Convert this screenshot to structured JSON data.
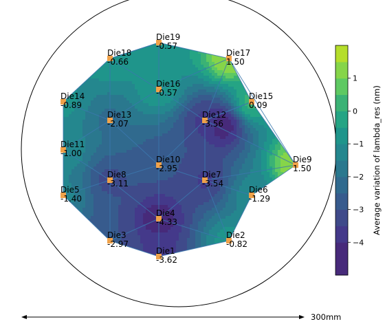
{
  "chart_data": {
    "type": "contour",
    "title": "",
    "colorbar": {
      "label": "Average variation of lambda_res (nm)",
      "ticks": [
        1,
        0,
        -1,
        -2,
        -3,
        -4
      ],
      "tick_labels": [
        "1",
        "0",
        "−1",
        "−2",
        "−3",
        "−4"
      ],
      "range": [
        -5,
        2
      ],
      "levels": [
        -5,
        -4,
        -3.5,
        -3,
        -2.5,
        -2,
        -1.5,
        -1,
        -0.5,
        0,
        0.5,
        1,
        1.5,
        2
      ],
      "colors": [
        "#472a7a",
        "#44398a",
        "#3f4a8a",
        "#375b8d",
        "#306a8e",
        "#2a788e",
        "#24878e",
        "#1f958b",
        "#25a484",
        "#3bb275",
        "#5ec962",
        "#86d549",
        "#b5de2b",
        "#dde318"
      ]
    },
    "scale_bar": {
      "label": "300mm"
    },
    "dies": [
      {
        "name": "Die1",
        "value": "-3.62",
        "v": -3.62
      },
      {
        "name": "Die2",
        "value": "-0.82",
        "v": -0.82
      },
      {
        "name": "Die3",
        "value": "-2.97",
        "v": -2.97
      },
      {
        "name": "Die4",
        "value": "-4.33",
        "v": -4.33
      },
      {
        "name": "Die5",
        "value": "-1.40",
        "v": -1.4
      },
      {
        "name": "Die6",
        "value": "-1.29",
        "v": -1.29
      },
      {
        "name": "Die7",
        "value": "-3.54",
        "v": -3.54
      },
      {
        "name": "Die8",
        "value": "-3.11",
        "v": -3.11
      },
      {
        "name": "Die9",
        "value": "1.50",
        "v": 1.5
      },
      {
        "name": "Die10",
        "value": "-2.95",
        "v": -2.95
      },
      {
        "name": "Die11",
        "value": "-1.00",
        "v": -1.0
      },
      {
        "name": "Die12",
        "value": "-3.56",
        "v": -3.56
      },
      {
        "name": "Die13",
        "value": "-2.07",
        "v": -2.07
      },
      {
        "name": "Die14",
        "value": "-0.89",
        "v": -0.89
      },
      {
        "name": "Die15",
        "value": "0.09",
        "v": 0.09
      },
      {
        "name": "Die16",
        "value": "-0.57",
        "v": -0.57
      },
      {
        "name": "Die17",
        "value": "1.50",
        "v": 1.5
      },
      {
        "name": "Die18",
        "value": "-0.66",
        "v": -0.66
      },
      {
        "name": "Die19",
        "value": "-0.57",
        "v": -0.57
      }
    ]
  }
}
